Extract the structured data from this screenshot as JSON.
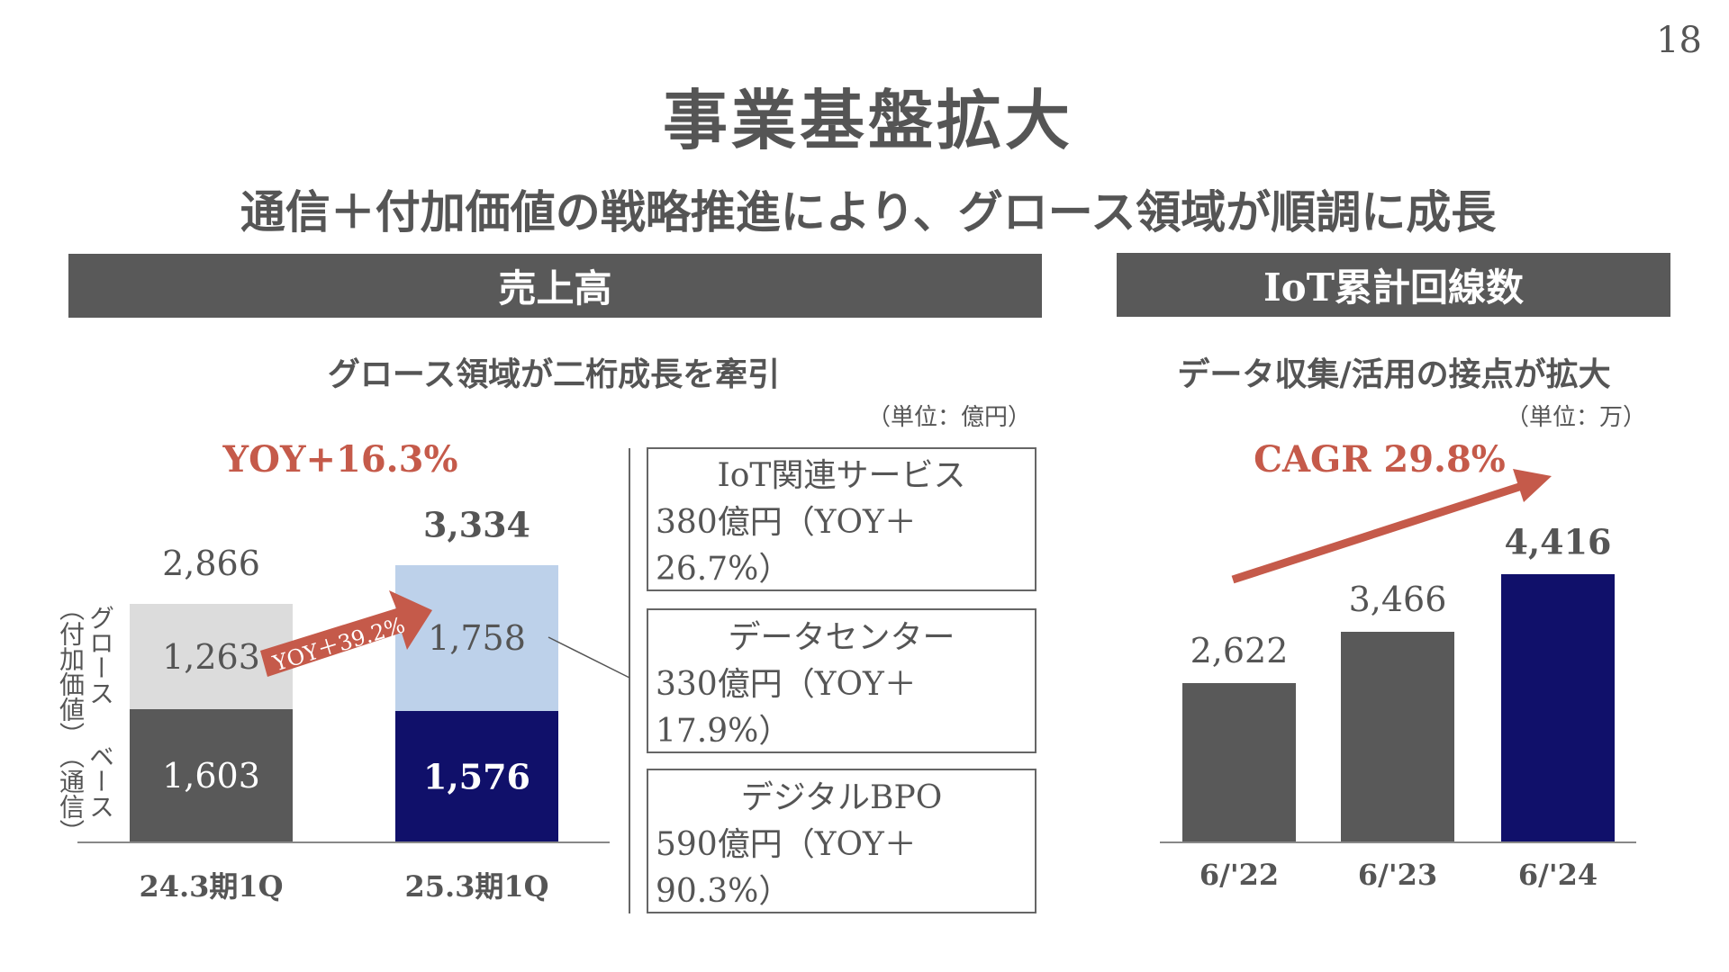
{
  "page_number": "18",
  "title": "事業基盤拡大",
  "subtitle": "通信＋付加価値の戦略推進により、グロース領域が順調に成長",
  "colors": {
    "base_prev": "#595959",
    "growth_prev": "#dcdcdc",
    "base_curr": "#10106a",
    "growth_curr": "#bdd1ea",
    "accent": "#c55a4a",
    "iot_prev": "#595959",
    "iot_curr": "#10106a"
  },
  "chart_data": [
    {
      "type": "bar",
      "stacked": true,
      "header": "売上高",
      "title": "グロース領域が二桁成長を牽引",
      "unit": "（単位：億円）",
      "categories": [
        "24.3期1Q",
        "25.3期1Q"
      ],
      "series": [
        {
          "name": "ベース（通信）",
          "values": [
            1603,
            1576
          ]
        },
        {
          "name": "グロース（付加価値）",
          "values": [
            1263,
            1758
          ]
        }
      ],
      "totals": [
        "2,866",
        "3,334"
      ],
      "value_labels": {
        "base": [
          "1,603",
          "1,576"
        ],
        "growth": [
          "1,263",
          "1,758"
        ]
      },
      "annotation": "YOY+16.3%",
      "growth_arrow": "YOY＋39.2%",
      "series_labels": {
        "growth": "グロース",
        "growth_sub": "（付加価値）",
        "base": "ベース",
        "base_sub": "（通信）"
      },
      "breakdown": [
        {
          "name": "IoT関連サービス",
          "value": "380億円（YOY＋26.7%）"
        },
        {
          "name": "データセンター",
          "value": "330億円（YOY＋17.9%）"
        },
        {
          "name": "デジタルBPO",
          "value": "590億円（YOY＋90.3%）"
        }
      ]
    },
    {
      "type": "bar",
      "header": "IoT累計回線数",
      "title": "データ収集/活用の接点が拡大",
      "unit": "（単位：万）",
      "categories": [
        "6/'22",
        "6/'23",
        "6/'24"
      ],
      "values": [
        2622,
        3466,
        4416
      ],
      "value_labels": [
        "2,622",
        "3,466",
        "4,416"
      ],
      "annotation": "CAGR 29.8%"
    }
  ]
}
